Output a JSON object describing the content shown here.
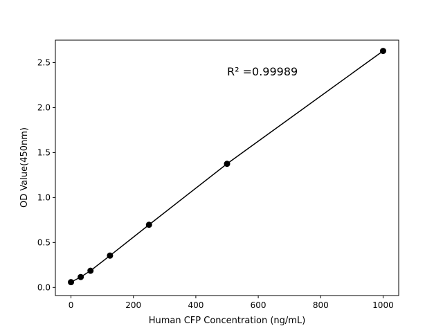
{
  "chart_data": {
    "type": "line",
    "title": "",
    "xlabel": "Human CFP Concentration (ng/mL)",
    "ylabel": "OD Value(450nm)",
    "annotation": "R² =0.99989",
    "x": [
      0,
      31.25,
      62.5,
      125,
      250,
      500,
      1000
    ],
    "series": [
      {
        "values": [
          0.059,
          0.116,
          0.186,
          0.354,
          0.697,
          1.375,
          2.63
        ],
        "color": "#000000",
        "marker": "circle"
      }
    ],
    "xlim": [
      -50,
      1050
    ],
    "ylim": [
      -0.09,
      2.75
    ],
    "xticks": [
      0,
      200,
      400,
      600,
      800,
      1000
    ],
    "xtick_labels": [
      "0",
      "200",
      "400",
      "600",
      "800",
      "1000"
    ],
    "yticks": [
      0.0,
      0.5,
      1.0,
      1.5,
      2.0,
      2.5
    ],
    "ytick_labels": [
      "0.0",
      "0.5",
      "1.0",
      "1.5",
      "2.0",
      "2.5"
    ],
    "grid": false,
    "legend": "none"
  }
}
